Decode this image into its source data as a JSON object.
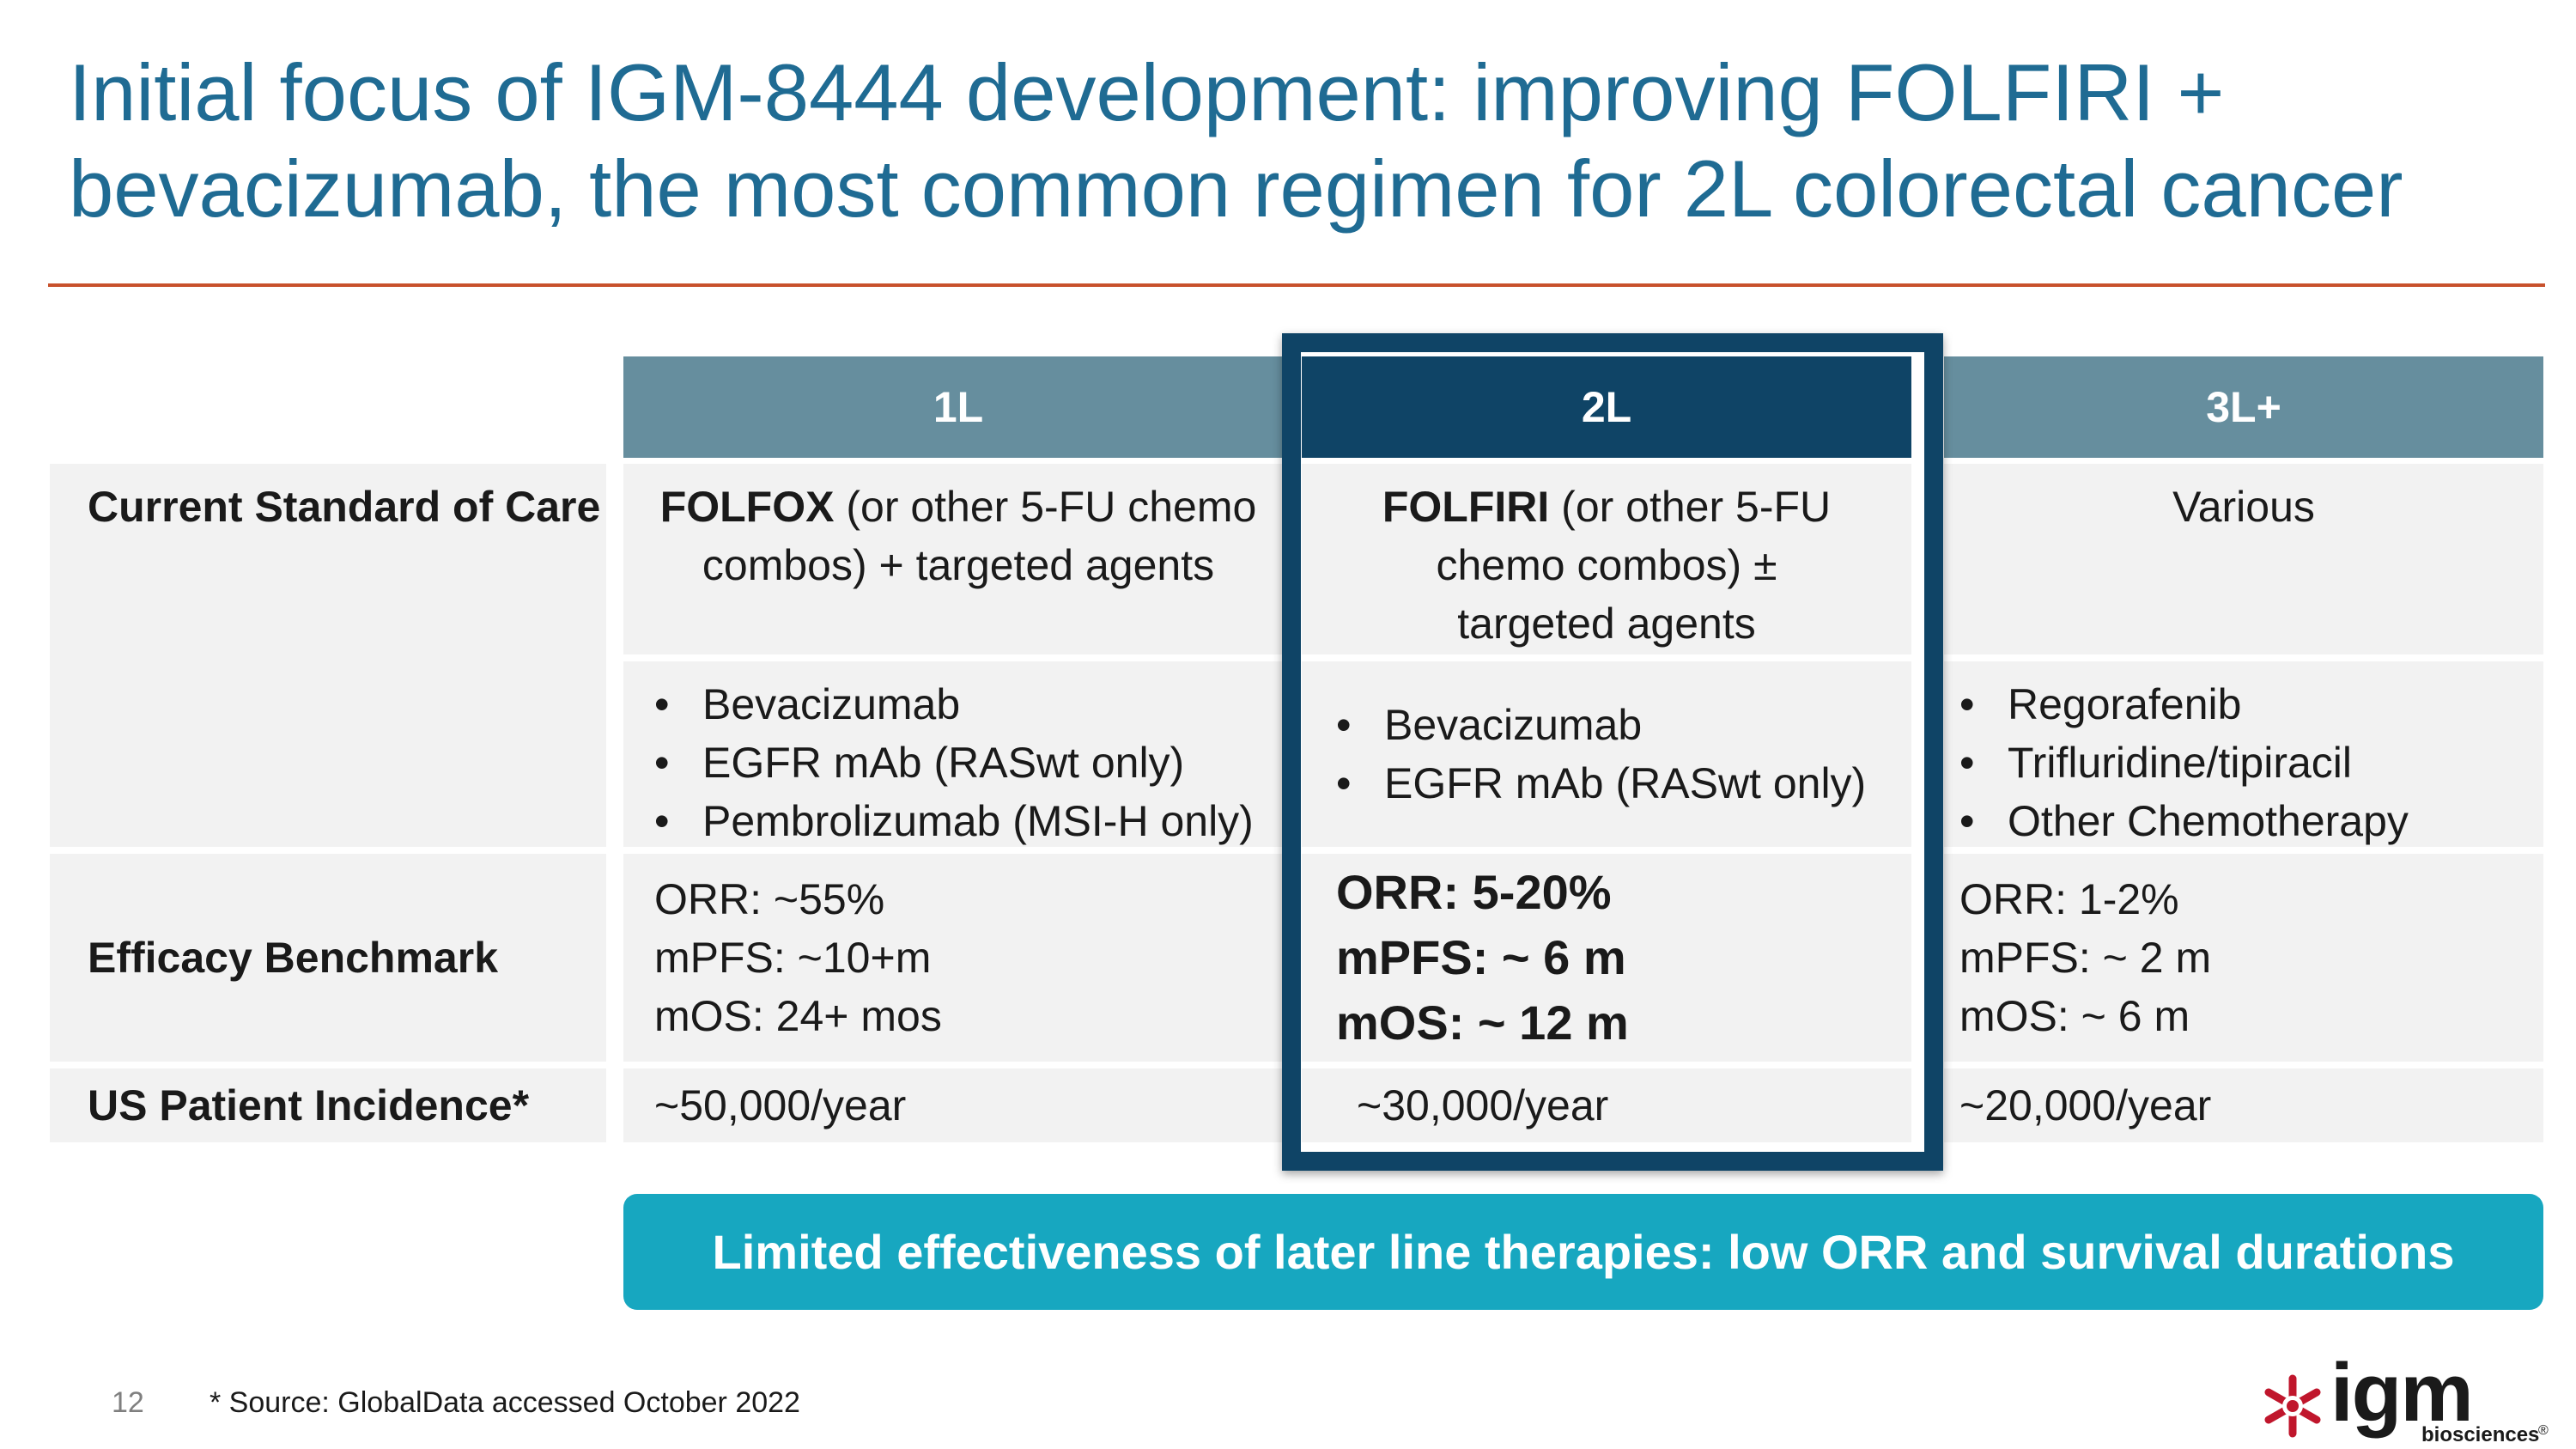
{
  "title": {
    "line1": "Initial focus of IGM-8444 development: improving FOLFIRI +",
    "line2": "bevacizumab, the most common regimen for 2L colorectal cancer"
  },
  "table": {
    "columns": [
      "1L",
      "2L",
      "3L+"
    ],
    "rows": {
      "soc_label": "Current Standard of Care",
      "efficacy_label": "Efficacy Benchmark",
      "incidence_label": "US Patient Incidence*"
    },
    "l1": {
      "soc_bold": "FOLFOX",
      "soc_rest1": " (or other 5-FU chemo",
      "soc_rest2": "combos) + targeted agents",
      "agents": [
        "Bevacizumab",
        "EGFR mAb (RASwt only)",
        "Pembrolizumab (MSI-H only)"
      ],
      "orr": "ORR: ~55%",
      "mpfs": "mPFS: ~10+m",
      "mos": "mOS: 24+ mos",
      "incidence": "~50,000/year"
    },
    "l2": {
      "soc_bold": "FOLFIRI",
      "soc_rest1": " (or other 5-FU",
      "soc_rest2": "chemo combos) ±",
      "soc_rest3": "targeted agents",
      "agents": [
        "Bevacizumab",
        "EGFR mAb (RASwt only)"
      ],
      "orr": "ORR: 5-20%",
      "mpfs": "mPFS: ~ 6 m",
      "mos": "mOS: ~ 12 m",
      "incidence": "~30,000/year"
    },
    "l3": {
      "soc": "Various",
      "agents": [
        "Regorafenib",
        "Trifluridine/tipiracil",
        "Other Chemotherapy"
      ],
      "orr": "ORR: 1-2%",
      "mpfs": "mPFS: ~ 2 m",
      "mos": "mOS: ~ 6 m",
      "incidence": "~20,000/year"
    }
  },
  "banner": "Limited effectiveness of later line therapies: low ORR and survival durations",
  "footer": {
    "page_number": "12",
    "source": "* Source: GlobalData accessed October 2022"
  },
  "logo": {
    "text": "igm",
    "subtext": "biosciences",
    "mark": "®",
    "icon": "asterisk-flower-icon",
    "color": "#c0162c"
  },
  "colors": {
    "title": "#1f6b93",
    "header": "#668e9e",
    "header_highlight": "#0f4466",
    "rule": "#c8512c",
    "banner": "#17a7c0"
  }
}
